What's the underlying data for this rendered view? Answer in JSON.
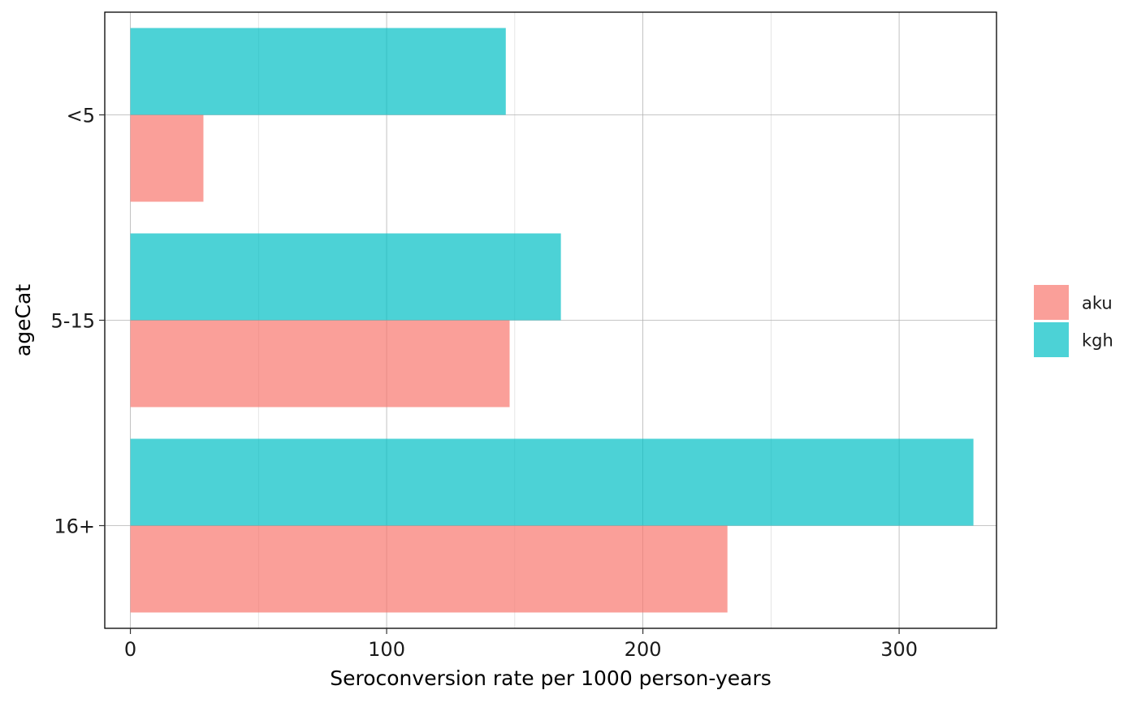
{
  "chart_data": {
    "type": "bar",
    "orientation": "horizontal",
    "title": "",
    "xlabel": "Seroconversion rate per 1000 person-years",
    "ylabel": "ageCat",
    "categories": [
      "<5",
      "5-15",
      "16+"
    ],
    "series": [
      {
        "name": "aku",
        "color": "#F8766D",
        "values": [
          28.5,
          148,
          233
        ]
      },
      {
        "name": "kgh",
        "color": "#00BFC4",
        "values": [
          146.5,
          168,
          329
        ]
      }
    ],
    "xlim": [
      -10,
      338
    ],
    "xticks": [
      0,
      100,
      200,
      300
    ],
    "grid": true,
    "legend": {
      "position": "right"
    },
    "bar_opacity": 0.7
  }
}
